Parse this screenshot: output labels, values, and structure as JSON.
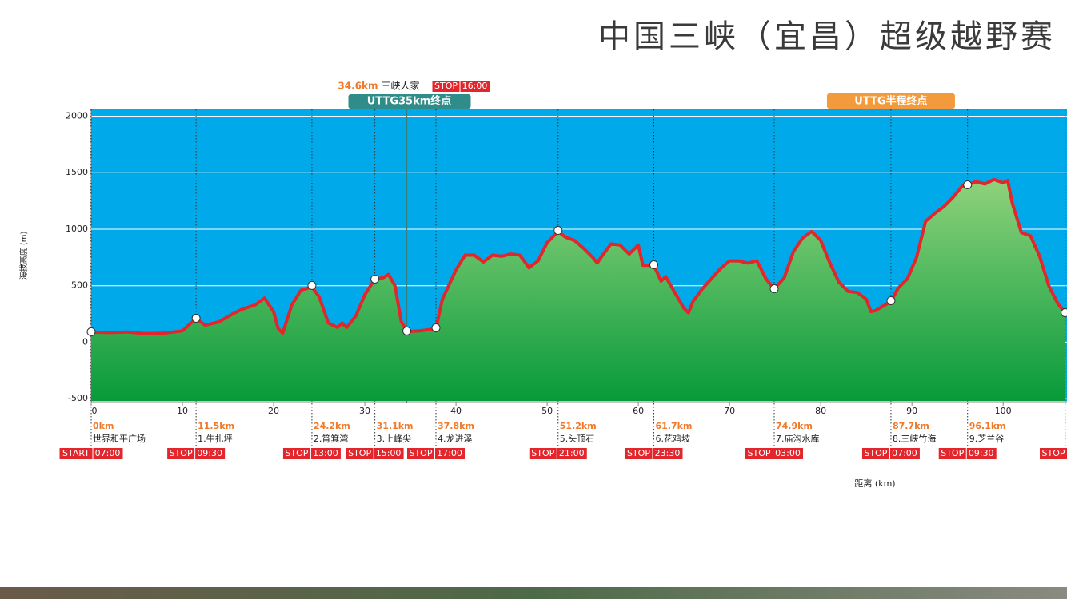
{
  "chart_data": {
    "type": "area",
    "title": "中国三峡（宜昌）超级越野赛",
    "y_label": "海拔高度 (m)",
    "x_label": "距离 (km)",
    "x": [
      0,
      2,
      4,
      6,
      8,
      10,
      11.5,
      12.5,
      14,
      15.5,
      16.5,
      18,
      19,
      20,
      20.5,
      21,
      22,
      23,
      24.2,
      25,
      26,
      27,
      27.5,
      28,
      29,
      30,
      31.1,
      32,
      32.6,
      33.3,
      34,
      34.6,
      35,
      36,
      37.8,
      38.5,
      40,
      41,
      42,
      43,
      44,
      45,
      46,
      47,
      48,
      49,
      50,
      51.2,
      52,
      53,
      54,
      55,
      55.5,
      56,
      57,
      58,
      59,
      60,
      60.5,
      61.7,
      62.5,
      63,
      64,
      65,
      65.5,
      66,
      67,
      68,
      69,
      70,
      71,
      72,
      73,
      74,
      74.9,
      76,
      77,
      78,
      79,
      80,
      81,
      82,
      83,
      84,
      85,
      85.5,
      86,
      87.7,
      88.5,
      89.5,
      90.5,
      91.5,
      92.5,
      93.5,
      94.5,
      95.5,
      96.1,
      97,
      98,
      99,
      100,
      100.5,
      101,
      102,
      103,
      104,
      105,
      106,
      106.8
    ],
    "values": [
      90,
      85,
      90,
      75,
      80,
      100,
      210,
      150,
      180,
      250,
      290,
      330,
      390,
      270,
      120,
      80,
      330,
      460,
      490,
      400,
      170,
      130,
      170,
      130,
      230,
      420,
      560,
      570,
      600,
      500,
      180,
      100,
      95,
      100,
      120,
      380,
      640,
      770,
      770,
      710,
      770,
      760,
      780,
      770,
      660,
      720,
      880,
      980,
      930,
      900,
      830,
      750,
      700,
      760,
      870,
      860,
      780,
      860,
      680,
      680,
      540,
      580,
      440,
      300,
      260,
      360,
      470,
      560,
      650,
      720,
      720,
      700,
      720,
      560,
      470,
      570,
      800,
      920,
      980,
      900,
      700,
      530,
      450,
      440,
      380,
      270,
      280,
      360,
      480,
      560,
      750,
      1070,
      1140,
      1200,
      1280,
      1380,
      1390,
      1420,
      1400,
      1440,
      1410,
      1430,
      1230,
      970,
      940,
      760,
      500,
      340,
      260
    ],
    "color": "#e3262c",
    "fill": "#3cae4a",
    "background": "#00a9e9",
    "xlim": [
      0,
      107
    ],
    "ylim": [
      -520,
      2060
    ],
    "xticks": [
      0,
      10,
      20,
      30,
      40,
      50,
      60,
      70,
      80,
      90,
      100
    ],
    "yticks": [
      -500,
      0,
      500,
      1000,
      1500,
      2000
    ],
    "grid": true,
    "checkpoints": [
      {
        "x": 0,
        "elevation": 92,
        "km_label": "0km",
        "name": "世界和平广场",
        "status": "START",
        "time": "07:00"
      },
      {
        "x": 11.5,
        "elevation": 212,
        "km_label": "11.5km",
        "name": "1.牛扎坪",
        "status": "STOP",
        "time": "09:30"
      },
      {
        "x": 24.2,
        "elevation": 502,
        "km_label": "24.2km",
        "name": "2.筲箕湾",
        "status": "STOP",
        "time": "13:00"
      },
      {
        "x": 31.1,
        "elevation": 558,
        "km_label": "31.1km",
        "name": "3.上峰尖",
        "status": "STOP",
        "time": "15:00"
      },
      {
        "x": 37.8,
        "elevation": 127,
        "km_label": "37.8km",
        "name": "4.龙进溪",
        "status": "STOP",
        "time": "17:00"
      },
      {
        "x": 51.2,
        "elevation": 989,
        "km_label": "51.2km",
        "name": "5.头顶石",
        "status": "STOP",
        "time": "21:00"
      },
      {
        "x": 61.7,
        "elevation": 685,
        "km_label": "61.7km",
        "name": "6.花鸡坡",
        "status": "STOP",
        "time": "23:30"
      },
      {
        "x": 74.9,
        "elevation": 473,
        "km_label": "74.9km",
        "name": "7.庙沟水库",
        "status": "STOP",
        "time": "03:00"
      },
      {
        "x": 87.7,
        "elevation": 367,
        "km_label": "87.7km",
        "name": "8.三峡竹海",
        "status": "STOP",
        "time": "07:00"
      },
      {
        "x": 96.1,
        "elevation": 1392,
        "km_label": "96.1km",
        "name": "9.芝兰谷",
        "status": "STOP",
        "time": "09:30"
      },
      {
        "x": 106.8,
        "elevation": 261,
        "status": "STOP"
      }
    ],
    "finish_35k": {
      "x": 34.6,
      "elevation": 99,
      "km_label": "34.6km",
      "name": "三峡人家",
      "status": "STOP",
      "time": "16:00",
      "banner": "UTTG35km终点"
    },
    "half": {
      "x": 87.7,
      "banner": "UTTG半程终点"
    }
  }
}
